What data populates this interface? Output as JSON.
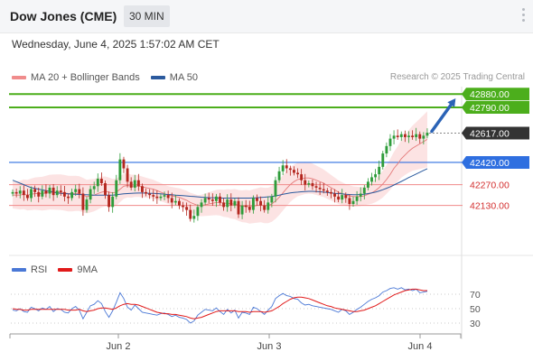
{
  "header": {
    "title": "Dow Jones (CME)",
    "timeframe": "30 MIN"
  },
  "date_line": "Wednesday, June 4, 2025 1:57:02 AM CET",
  "copyright": "Research © 2025 Trading Central",
  "legend": [
    {
      "label": "MA 20 + Bollinger Bands",
      "color": "#f08c8c"
    },
    {
      "label": "MA 50",
      "color": "#2b5a9e"
    }
  ],
  "rsi_legend": [
    {
      "label": "RSI",
      "color": "#4a78d6"
    },
    {
      "label": "9MA",
      "color": "#e11a1a"
    }
  ],
  "colors": {
    "up_candle": "#2e9c3a",
    "down_candle": "#b3261e",
    "resistance": "#4cae1c",
    "support": "#2f6fe0",
    "pivot": "#f08a8a",
    "last": "#333333",
    "arrow": "#2b63b6",
    "band": "#fcdede"
  },
  "chart_data": {
    "type": "candlestick",
    "ylim": [
      41800,
      42930
    ],
    "x_ticks": [
      "Jun 2",
      "Jun 3",
      "Jun 4"
    ],
    "levels": [
      {
        "label": "42880.00",
        "value": 42880,
        "kind": "resistance"
      },
      {
        "label": "42790.00",
        "value": 42790,
        "kind": "resistance"
      },
      {
        "label": "42617.00",
        "value": 42617,
        "kind": "last"
      },
      {
        "label": "42420.00",
        "value": 42420,
        "kind": "support"
      },
      {
        "label": "42270.00",
        "value": 42270,
        "kind": "pivot"
      },
      {
        "label": "42130.00",
        "value": 42130,
        "kind": "pivot"
      }
    ],
    "close": [
      42220,
      42210,
      42230,
      42200,
      42180,
      42240,
      42220,
      42190,
      42230,
      42210,
      42250,
      42200,
      42230,
      42220,
      42190,
      42180,
      42220,
      42240,
      42210,
      42100,
      42170,
      42240,
      42260,
      42310,
      42280,
      42200,
      42120,
      42190,
      42300,
      42440,
      42380,
      42290,
      42250,
      42300,
      42260,
      42220,
      42210,
      42200,
      42190,
      42180,
      42190,
      42200,
      42180,
      42150,
      42160,
      42130,
      42120,
      42100,
      42040,
      42060,
      42120,
      42150,
      42180,
      42170,
      42160,
      42190,
      42150,
      42120,
      42170,
      42130,
      42160,
      42070,
      42130,
      42120,
      42100,
      42180,
      42160,
      42130,
      42100,
      42150,
      42190,
      42300,
      42360,
      42400,
      42380,
      42370,
      42350,
      42340,
      42300,
      42270,
      42280,
      42260,
      42250,
      42240,
      42230,
      42220,
      42210,
      42190,
      42170,
      42200,
      42180,
      42140,
      42160,
      42190,
      42210,
      42250,
      42290,
      42320,
      42340,
      42390,
      42480,
      42530,
      42580,
      42600,
      42590,
      42610,
      42590,
      42600,
      42590,
      42610,
      42580,
      42600,
      42620
    ],
    "ma20": [
      42200,
      42200,
      42200,
      42205,
      42200,
      42205,
      42210,
      42210,
      42210,
      42215,
      42220,
      42220,
      42220,
      42220,
      42215,
      42210,
      42210,
      42212,
      42210,
      42200,
      42190,
      42195,
      42200,
      42210,
      42220,
      42225,
      42220,
      42215,
      42220,
      42240,
      42260,
      42265,
      42260,
      42262,
      42260,
      42255,
      42250,
      42245,
      42240,
      42230,
      42220,
      42210,
      42200,
      42195,
      42190,
      42185,
      42175,
      42165,
      42150,
      42140,
      42130,
      42130,
      42135,
      42140,
      42145,
      42150,
      42150,
      42145,
      42145,
      42140,
      42140,
      42130,
      42125,
      42125,
      42120,
      42125,
      42130,
      42135,
      42130,
      42130,
      42140,
      42160,
      42185,
      42215,
      42245,
      42270,
      42290,
      42305,
      42310,
      42315,
      42315,
      42310,
      42300,
      42290,
      42280,
      42265,
      42250,
      42235,
      42220,
      42210,
      42200,
      42195,
      42190,
      42190,
      42190,
      42195,
      42205,
      42215,
      42230,
      42250,
      42275,
      42305,
      42340,
      42380,
      42410,
      42445,
      42470,
      42495,
      42515,
      42530,
      42545,
      42560,
      42575
    ],
    "ma50": [
      42300,
      42290,
      42280,
      42270,
      42260,
      42250,
      42245,
      42240,
      42235,
      42230,
      42225,
      42220,
      42215,
      42212,
      42210,
      42208,
      42206,
      42205,
      42204,
      42203,
      42202,
      42201,
      42200,
      42200,
      42200,
      42200,
      42200,
      42200,
      42202,
      42205,
      42208,
      42210,
      42212,
      42213,
      42214,
      42214,
      42213,
      42212,
      42211,
      42210,
      42208,
      42206,
      42204,
      42202,
      42200,
      42198,
      42196,
      42194,
      42192,
      42190,
      42188,
      42186,
      42184,
      42183,
      42182,
      42181,
      42180,
      42180,
      42180,
      42180,
      42180,
      42180,
      42180,
      42180,
      42180,
      42181,
      42182,
      42184,
      42186,
      42188,
      42190,
      42195,
      42200,
      42205,
      42210,
      42215,
      42218,
      42220,
      42222,
      42224,
      42225,
      42225,
      42224,
      42222,
      42220,
      42218,
      42215,
      42212,
      42210,
      42208,
      42206,
      42204,
      42203,
      42203,
      42204,
      42206,
      42210,
      42215,
      42220,
      42228,
      42236,
      42246,
      42256,
      42268,
      42280,
      42292,
      42305,
      42318,
      42330,
      42342,
      42354,
      42366,
      42378
    ],
    "rsi": [
      48,
      47,
      50,
      46,
      45,
      52,
      50,
      47,
      51,
      49,
      53,
      46,
      50,
      49,
      45,
      44,
      50,
      53,
      48,
      36,
      45,
      54,
      56,
      61,
      57,
      46,
      38,
      47,
      59,
      72,
      64,
      52,
      48,
      55,
      50,
      45,
      44,
      43,
      42,
      41,
      43,
      44,
      42,
      39,
      41,
      38,
      37,
      35,
      30,
      33,
      41,
      45,
      49,
      48,
      47,
      51,
      46,
      42,
      49,
      44,
      48,
      37,
      45,
      44,
      42,
      52,
      50,
      46,
      42,
      48,
      53,
      64,
      68,
      71,
      68,
      67,
      64,
      63,
      58,
      55,
      56,
      54,
      53,
      52,
      51,
      50,
      49,
      47,
      45,
      49,
      47,
      42,
      45,
      49,
      52,
      56,
      60,
      63,
      65,
      68,
      73,
      75,
      78,
      79,
      77,
      79,
      76,
      77,
      75,
      77,
      72,
      73,
      74
    ],
    "rsi_ma": [
      50,
      49,
      49,
      48,
      48,
      49,
      49,
      49,
      49,
      49,
      49,
      49,
      49,
      49,
      49,
      48,
      48,
      48,
      49,
      47,
      46,
      47,
      48,
      50,
      51,
      51,
      50,
      49,
      51,
      54,
      56,
      57,
      56,
      56,
      55,
      53,
      51,
      49,
      47,
      45,
      44,
      43,
      43,
      42,
      42,
      41,
      40,
      39,
      37,
      36,
      37,
      38,
      40,
      42,
      44,
      46,
      47,
      47,
      47,
      47,
      47,
      46,
      46,
      46,
      45,
      46,
      46,
      46,
      45,
      46,
      47,
      50,
      53,
      57,
      60,
      63,
      65,
      66,
      66,
      65,
      64,
      62,
      60,
      58,
      56,
      54,
      53,
      51,
      50,
      49,
      48,
      47,
      46,
      46,
      47,
      48,
      50,
      52,
      54,
      57,
      60,
      63,
      66,
      69,
      71,
      73,
      75,
      76,
      77,
      77,
      76,
      75,
      75
    ],
    "rsi_ticks": [
      30,
      50,
      70
    ],
    "forecast": {
      "from": 42617,
      "to": 42880
    }
  }
}
